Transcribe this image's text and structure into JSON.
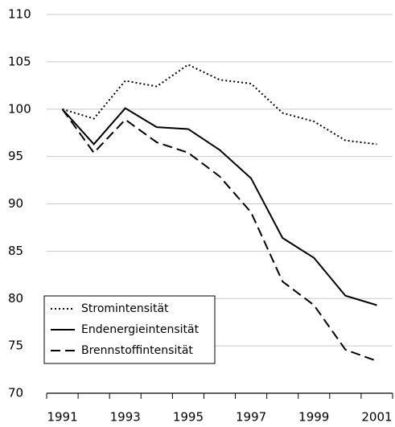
{
  "chart_data": {
    "type": "line",
    "categories": [
      "1991",
      null,
      "1993",
      null,
      "1995",
      null,
      "1997",
      null,
      "1999",
      null,
      "2001"
    ],
    "series": [
      {
        "name": "Stromintensität",
        "color": "#000000",
        "dash": "dotted",
        "values": [
          100,
          99,
          103,
          102.4,
          104.7,
          103.1,
          102.7,
          99.6,
          98.7,
          96.7,
          96.3
        ]
      },
      {
        "name": "Endenergieintensität",
        "color": "#000000",
        "dash": "solid",
        "values": [
          100,
          96.3,
          100.1,
          98.1,
          97.9,
          95.7,
          92.7,
          86.4,
          84.3,
          80.3,
          79.3
        ]
      },
      {
        "name": "Brennstoffintensität",
        "color": "#000000",
        "dash": "dashed",
        "values": [
          100,
          95.4,
          98.9,
          96.5,
          95.4,
          92.9,
          89.1,
          81.8,
          79.3,
          74.6,
          73.4
        ]
      }
    ],
    "ylim": [
      70,
      110
    ],
    "yticks": [
      70,
      75,
      80,
      85,
      90,
      95,
      100,
      105,
      110
    ],
    "grid": true,
    "legend": "lower-left"
  }
}
